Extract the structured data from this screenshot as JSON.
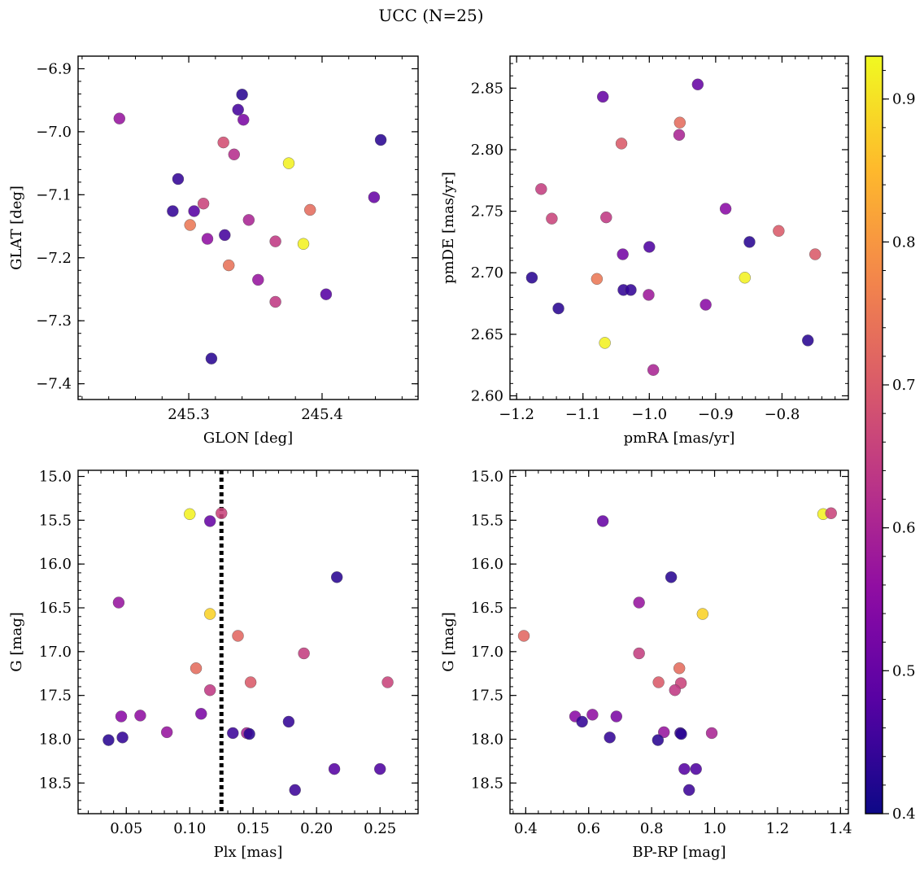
{
  "figure": {
    "title": "UCC (N=25)",
    "colorbar": {
      "vmin": 0.4,
      "vmax": 0.93,
      "ticks": [
        0.4,
        0.5,
        0.6,
        0.7,
        0.8,
        0.9
      ],
      "tick_labels": [
        "0.4",
        "0.5",
        "0.6",
        "0.7",
        "0.8",
        "0.9"
      ],
      "colormap": "plasma"
    }
  },
  "chart_data": [
    {
      "id": "glon-glat",
      "type": "scatter",
      "xlabel": "GLON [deg]",
      "ylabel": "GLAT [deg]",
      "xlim": [
        245.217,
        245.472
      ],
      "ylim": [
        -7.425,
        -6.88
      ],
      "y_inverted": false,
      "xticks": [
        245.3,
        245.4
      ],
      "xtick_labels": [
        "245.3",
        "245.4"
      ],
      "yticks": [
        -6.9,
        -7.0,
        -7.1,
        -7.2,
        -7.3,
        -7.4
      ],
      "ytick_labels": [
        "−6.9",
        "−7.0",
        "−7.1",
        "−7.2",
        "−7.3",
        "−7.4"
      ],
      "points": [
        {
          "x": 245.248,
          "y": -6.979,
          "c": 0.57
        },
        {
          "x": 245.34,
          "y": -6.941,
          "c": 0.43
        },
        {
          "x": 245.337,
          "y": -6.965,
          "c": 0.46
        },
        {
          "x": 245.341,
          "y": -6.981,
          "c": 0.53
        },
        {
          "x": 245.444,
          "y": -7.013,
          "c": 0.43
        },
        {
          "x": 245.326,
          "y": -7.017,
          "c": 0.68
        },
        {
          "x": 245.334,
          "y": -7.036,
          "c": 0.62
        },
        {
          "x": 245.375,
          "y": -7.05,
          "c": 0.92
        },
        {
          "x": 245.292,
          "y": -7.075,
          "c": 0.44
        },
        {
          "x": 245.439,
          "y": -7.104,
          "c": 0.5
        },
        {
          "x": 245.311,
          "y": -7.114,
          "c": 0.66
        },
        {
          "x": 245.288,
          "y": -7.126,
          "c": 0.44
        },
        {
          "x": 245.304,
          "y": -7.126,
          "c": 0.48
        },
        {
          "x": 245.391,
          "y": -7.124,
          "c": 0.73
        },
        {
          "x": 245.345,
          "y": -7.14,
          "c": 0.6
        },
        {
          "x": 245.301,
          "y": -7.148,
          "c": 0.75
        },
        {
          "x": 245.327,
          "y": -7.164,
          "c": 0.46
        },
        {
          "x": 245.314,
          "y": -7.17,
          "c": 0.56
        },
        {
          "x": 245.365,
          "y": -7.174,
          "c": 0.64
        },
        {
          "x": 245.386,
          "y": -7.178,
          "c": 0.92
        },
        {
          "x": 245.33,
          "y": -7.212,
          "c": 0.74
        },
        {
          "x": 245.352,
          "y": -7.235,
          "c": 0.57
        },
        {
          "x": 245.403,
          "y": -7.258,
          "c": 0.48
        },
        {
          "x": 245.365,
          "y": -7.27,
          "c": 0.64
        },
        {
          "x": 245.317,
          "y": -7.36,
          "c": 0.43
        }
      ]
    },
    {
      "id": "pmra-pmde",
      "type": "scatter",
      "xlabel": "pmRA [mas/yr]",
      "ylabel": "pmDE [mas/yr]",
      "xlim": [
        -1.21,
        -0.7
      ],
      "ylim": [
        2.597,
        2.876
      ],
      "y_inverted": false,
      "xticks": [
        -1.2,
        -1.1,
        -1.0,
        -0.9,
        -0.8
      ],
      "xtick_labels": [
        "−1.2",
        "−1.1",
        "−1.0",
        "−0.9",
        "−0.8"
      ],
      "yticks": [
        2.6,
        2.65,
        2.7,
        2.75,
        2.8,
        2.85
      ],
      "ytick_labels": [
        "2.60",
        "2.65",
        "2.70",
        "2.75",
        "2.80",
        "2.85"
      ],
      "points": [
        {
          "x": -0.927,
          "y": 2.853,
          "c": 0.5
        },
        {
          "x": -1.07,
          "y": 2.843,
          "c": 0.5
        },
        {
          "x": -0.954,
          "y": 2.822,
          "c": 0.73
        },
        {
          "x": -0.955,
          "y": 2.812,
          "c": 0.6
        },
        {
          "x": -1.042,
          "y": 2.805,
          "c": 0.7
        },
        {
          "x": -1.163,
          "y": 2.768,
          "c": 0.65
        },
        {
          "x": -0.885,
          "y": 2.752,
          "c": 0.55
        },
        {
          "x": -1.147,
          "y": 2.744,
          "c": 0.66
        },
        {
          "x": -1.065,
          "y": 2.745,
          "c": 0.64
        },
        {
          "x": -0.805,
          "y": 2.734,
          "c": 0.7
        },
        {
          "x": -0.849,
          "y": 2.725,
          "c": 0.43
        },
        {
          "x": -1.0,
          "y": 2.721,
          "c": 0.47
        },
        {
          "x": -1.04,
          "y": 2.715,
          "c": 0.52
        },
        {
          "x": -0.75,
          "y": 2.715,
          "c": 0.7
        },
        {
          "x": -1.177,
          "y": 2.696,
          "c": 0.43
        },
        {
          "x": -1.079,
          "y": 2.695,
          "c": 0.75
        },
        {
          "x": -0.856,
          "y": 2.696,
          "c": 0.92
        },
        {
          "x": -1.039,
          "y": 2.686,
          "c": 0.44
        },
        {
          "x": -1.028,
          "y": 2.686,
          "c": 0.44
        },
        {
          "x": -1.001,
          "y": 2.682,
          "c": 0.58
        },
        {
          "x": -0.915,
          "y": 2.674,
          "c": 0.55
        },
        {
          "x": -1.137,
          "y": 2.671,
          "c": 0.43
        },
        {
          "x": -0.761,
          "y": 2.645,
          "c": 0.43
        },
        {
          "x": -1.067,
          "y": 2.643,
          "c": 0.92
        },
        {
          "x": -0.994,
          "y": 2.621,
          "c": 0.6
        }
      ]
    },
    {
      "id": "plx-g",
      "type": "scatter",
      "xlabel": "Plx [mas]",
      "ylabel": "G [mag]",
      "xlim": [
        0.012,
        0.28
      ],
      "ylim": [
        18.85,
        14.93
      ],
      "y_inverted": true,
      "vline": 0.125,
      "xticks": [
        0.05,
        0.1,
        0.15,
        0.2,
        0.25
      ],
      "xtick_labels": [
        "0.05",
        "0.10",
        "0.15",
        "0.20",
        "0.25"
      ],
      "yticks": [
        15.0,
        15.5,
        16.0,
        16.5,
        17.0,
        17.5,
        18.0,
        18.5
      ],
      "ytick_labels": [
        "15.0",
        "15.5",
        "16.0",
        "16.5",
        "17.0",
        "17.5",
        "18.0",
        "18.5"
      ],
      "points": [
        {
          "x": 0.1,
          "y": 15.43,
          "c": 0.92
        },
        {
          "x": 0.125,
          "y": 15.42,
          "c": 0.66
        },
        {
          "x": 0.116,
          "y": 15.51,
          "c": 0.5
        },
        {
          "x": 0.216,
          "y": 16.15,
          "c": 0.43
        },
        {
          "x": 0.044,
          "y": 16.44,
          "c": 0.57
        },
        {
          "x": 0.116,
          "y": 16.57,
          "c": 0.88
        },
        {
          "x": 0.138,
          "y": 16.82,
          "c": 0.72
        },
        {
          "x": 0.19,
          "y": 17.02,
          "c": 0.65
        },
        {
          "x": 0.105,
          "y": 17.19,
          "c": 0.73
        },
        {
          "x": 0.148,
          "y": 17.35,
          "c": 0.7
        },
        {
          "x": 0.256,
          "y": 17.35,
          "c": 0.66
        },
        {
          "x": 0.116,
          "y": 17.44,
          "c": 0.64
        },
        {
          "x": 0.109,
          "y": 17.71,
          "c": 0.53
        },
        {
          "x": 0.046,
          "y": 17.74,
          "c": 0.55
        },
        {
          "x": 0.061,
          "y": 17.73,
          "c": 0.56
        },
        {
          "x": 0.178,
          "y": 17.8,
          "c": 0.44
        },
        {
          "x": 0.082,
          "y": 17.92,
          "c": 0.57
        },
        {
          "x": 0.134,
          "y": 17.93,
          "c": 0.45
        },
        {
          "x": 0.145,
          "y": 17.93,
          "c": 0.6
        },
        {
          "x": 0.147,
          "y": 17.94,
          "c": 0.43
        },
        {
          "x": 0.036,
          "y": 18.01,
          "c": 0.43
        },
        {
          "x": 0.047,
          "y": 17.98,
          "c": 0.44
        },
        {
          "x": 0.214,
          "y": 18.34,
          "c": 0.48
        },
        {
          "x": 0.25,
          "y": 18.34,
          "c": 0.47
        },
        {
          "x": 0.183,
          "y": 18.58,
          "c": 0.45
        }
      ]
    },
    {
      "id": "bprp-g",
      "type": "scatter",
      "xlabel": "BP-RP [mag]",
      "ylabel": "G [mag]",
      "xlim": [
        0.35,
        1.425
      ],
      "ylim": [
        18.85,
        14.93
      ],
      "y_inverted": true,
      "xticks": [
        0.4,
        0.6,
        0.8,
        1.0,
        1.2,
        1.4
      ],
      "xtick_labels": [
        "0.4",
        "0.6",
        "0.8",
        "1.0",
        "1.2",
        "1.4"
      ],
      "yticks": [
        15.0,
        15.5,
        16.0,
        16.5,
        17.0,
        17.5,
        18.0,
        18.5
      ],
      "ytick_labels": [
        "15.0",
        "15.5",
        "16.0",
        "16.5",
        "17.0",
        "17.5",
        "18.0",
        "18.5"
      ],
      "points": [
        {
          "x": 1.345,
          "y": 15.43,
          "c": 0.92
        },
        {
          "x": 1.37,
          "y": 15.42,
          "c": 0.66
        },
        {
          "x": 0.645,
          "y": 15.51,
          "c": 0.5
        },
        {
          "x": 0.862,
          "y": 16.15,
          "c": 0.43
        },
        {
          "x": 0.76,
          "y": 16.44,
          "c": 0.57
        },
        {
          "x": 0.962,
          "y": 16.57,
          "c": 0.88
        },
        {
          "x": 0.394,
          "y": 16.82,
          "c": 0.72
        },
        {
          "x": 0.76,
          "y": 17.02,
          "c": 0.65
        },
        {
          "x": 0.888,
          "y": 17.19,
          "c": 0.73
        },
        {
          "x": 0.822,
          "y": 17.35,
          "c": 0.7
        },
        {
          "x": 0.893,
          "y": 17.36,
          "c": 0.66
        },
        {
          "x": 0.874,
          "y": 17.44,
          "c": 0.64
        },
        {
          "x": 0.557,
          "y": 17.74,
          "c": 0.55
        },
        {
          "x": 0.612,
          "y": 17.72,
          "c": 0.56
        },
        {
          "x": 0.688,
          "y": 17.74,
          "c": 0.53
        },
        {
          "x": 0.579,
          "y": 17.8,
          "c": 0.44
        },
        {
          "x": 0.839,
          "y": 17.92,
          "c": 0.57
        },
        {
          "x": 0.891,
          "y": 17.93,
          "c": 0.45
        },
        {
          "x": 0.894,
          "y": 17.94,
          "c": 0.43
        },
        {
          "x": 0.991,
          "y": 17.93,
          "c": 0.6
        },
        {
          "x": 0.667,
          "y": 17.98,
          "c": 0.44
        },
        {
          "x": 0.82,
          "y": 18.01,
          "c": 0.43
        },
        {
          "x": 0.904,
          "y": 18.34,
          "c": 0.48
        },
        {
          "x": 0.941,
          "y": 18.34,
          "c": 0.47
        },
        {
          "x": 0.919,
          "y": 18.58,
          "c": 0.45
        }
      ]
    }
  ]
}
